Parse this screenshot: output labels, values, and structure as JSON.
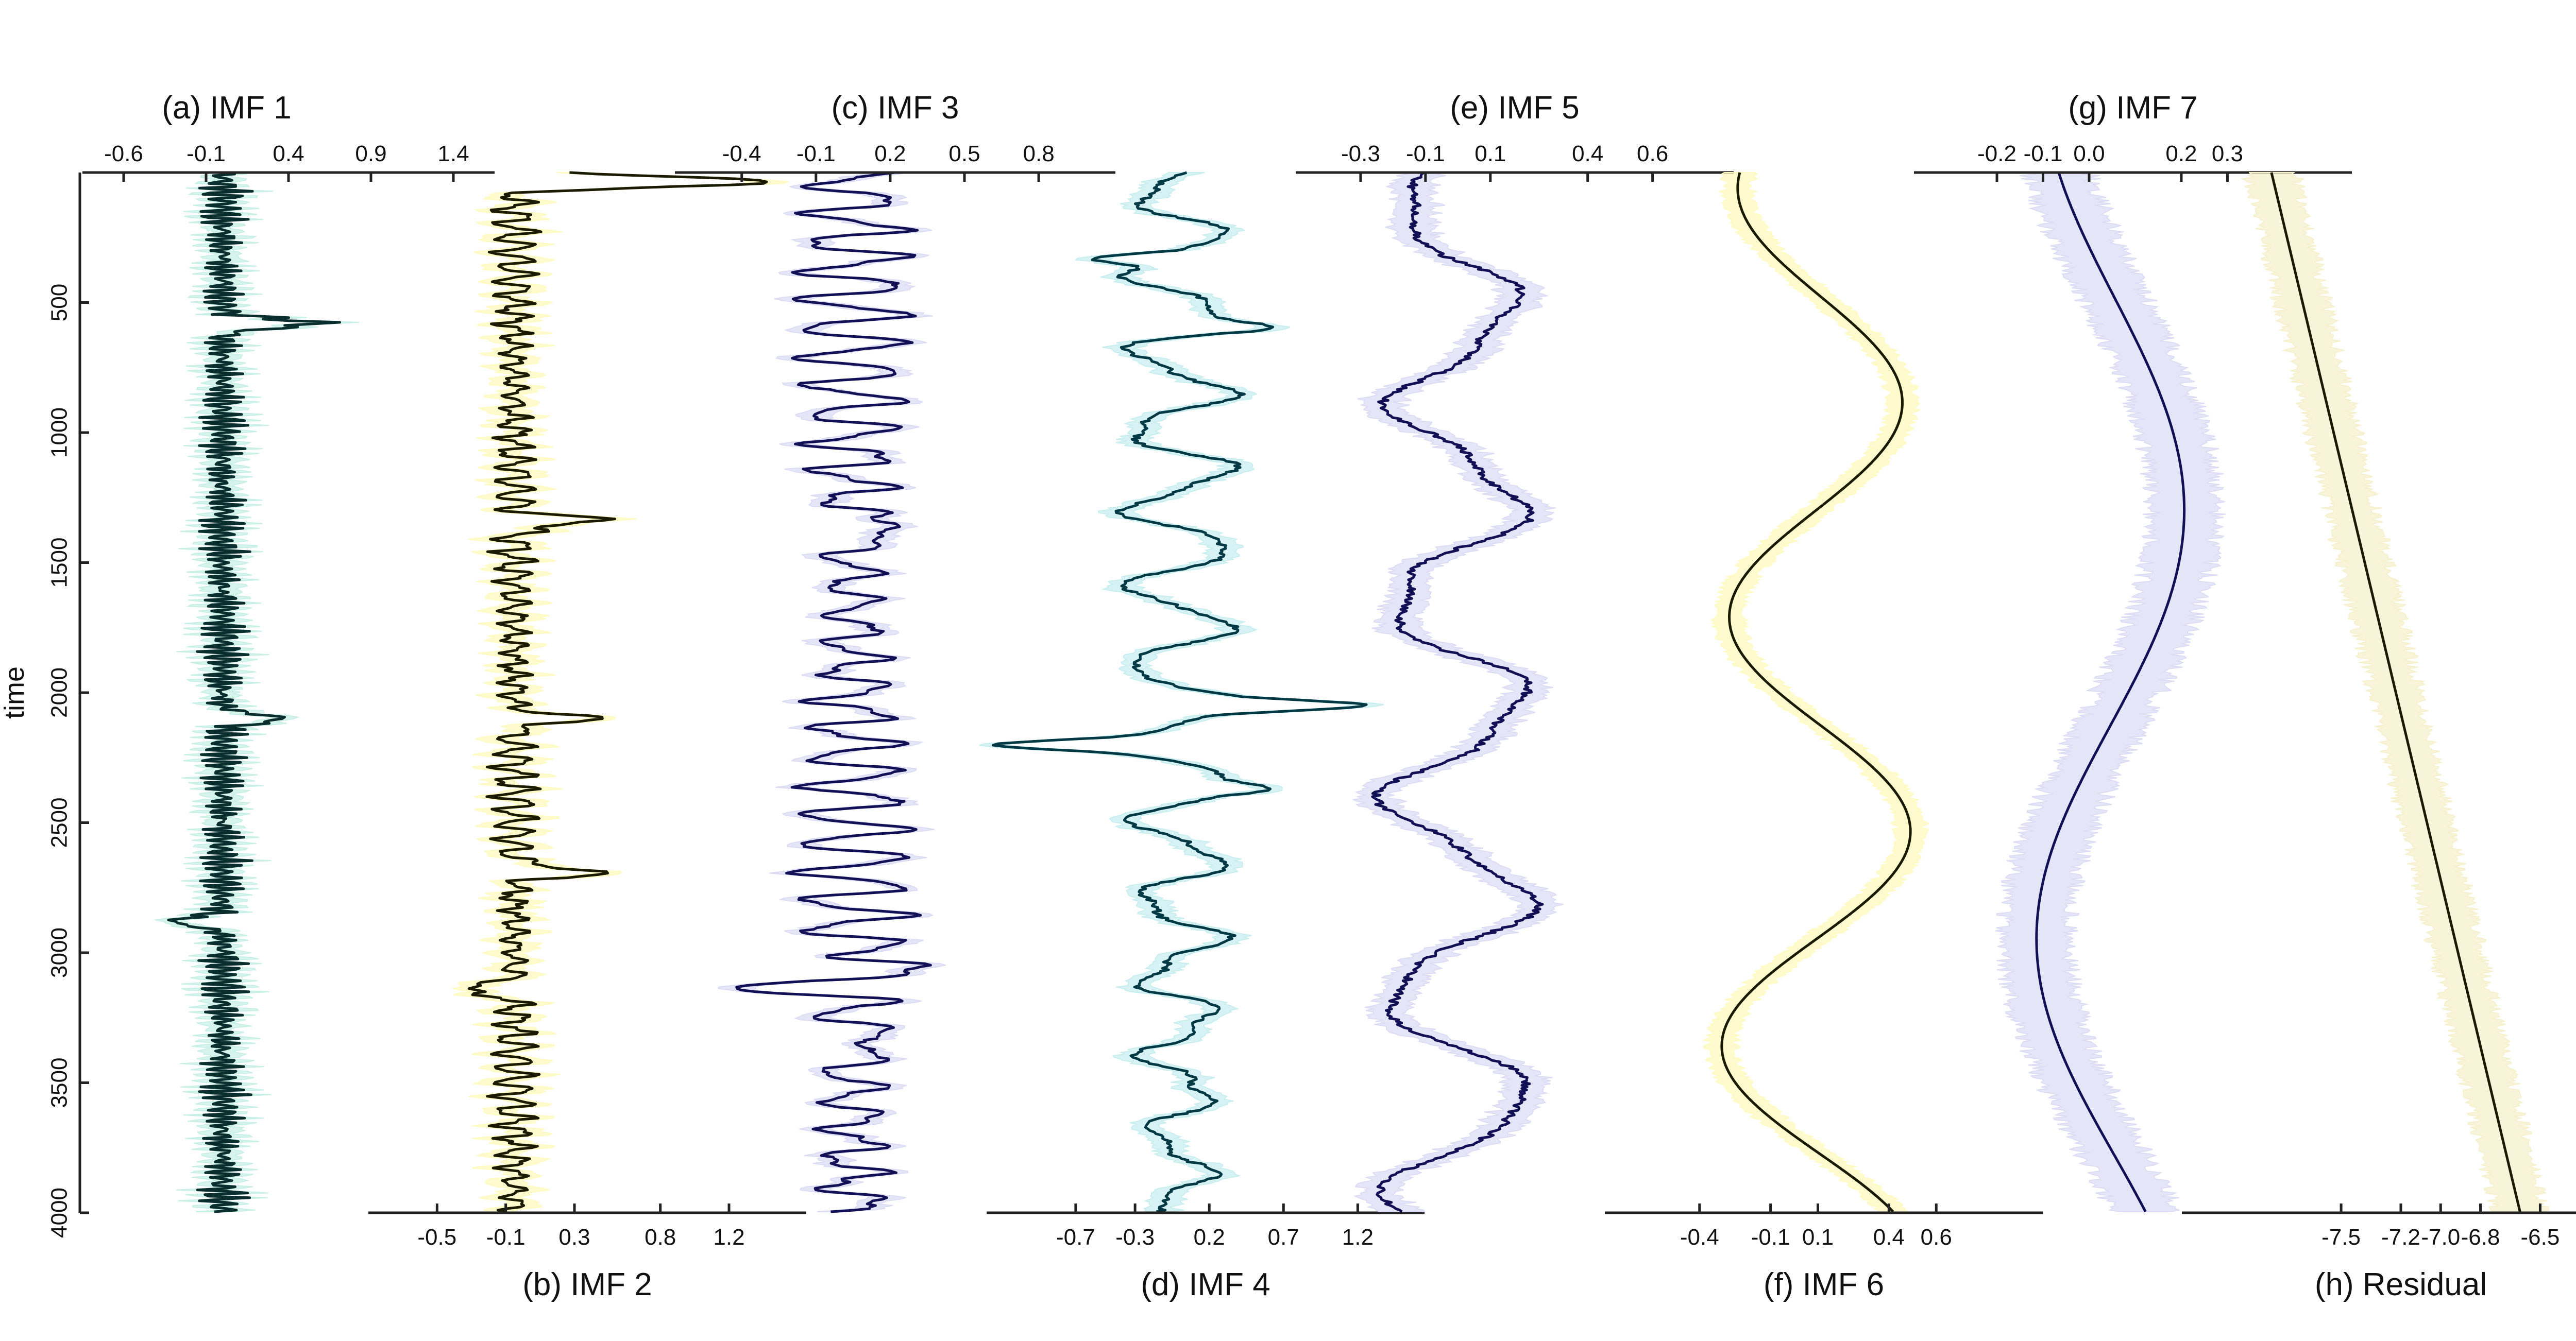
{
  "chart_data": {
    "type": "line",
    "ylabel": "time",
    "yticks": [
      500,
      1000,
      1500,
      2000,
      2500,
      3000,
      3500,
      4000
    ],
    "ylim": [
      0,
      4000
    ],
    "y_inverted": true,
    "confidence_band": true,
    "panels": [
      {
        "title": "(a) IMF 1",
        "axis": "top",
        "ticks": [
          "-0.6",
          "-0.1",
          "0.4",
          "0.9",
          "1.4"
        ],
        "xlim": [
          -0.85,
          1.65
        ],
        "color": "#0a2e2e",
        "band_color": "#c8f0e4",
        "signal": {
          "center": 0.0,
          "amps": [
            0.12,
            0.06
          ],
          "periods": [
            22,
            9
          ],
          "spikes": [
            [
              580,
              0.55
            ],
            [
              2100,
              0.35
            ],
            [
              2880,
              -0.3
            ]
          ],
          "band": 0.1
        }
      },
      {
        "title": "(b) IMF 2",
        "axis": "bottom",
        "ticks": [
          "-0.5",
          "-0.1",
          "0.3",
          "0.8",
          "1.2"
        ],
        "xlim": [
          -0.9,
          1.65
        ],
        "color": "#1a1a00",
        "band_color": "#fffabf",
        "signal": {
          "center": -0.05,
          "amps": [
            0.12,
            0.05
          ],
          "periods": [
            55,
            23
          ],
          "spikes": [
            [
              35,
              1.6
            ],
            [
              1340,
              0.5
            ],
            [
              2100,
              0.45
            ],
            [
              2690,
              0.5
            ],
            [
              3140,
              -0.3
            ]
          ],
          "band": 0.1
        }
      },
      {
        "title": "(c) IMF 3",
        "axis": "top",
        "ticks": [
          "-0.4",
          "-0.1",
          "0.2",
          "0.5",
          "0.8"
        ],
        "xlim": [
          -0.67,
          1.11
        ],
        "color": "#121055",
        "band_color": "#dcdcf5",
        "signal": {
          "center": 0.05,
          "amps": [
            0.22,
            0.06
          ],
          "periods": [
            110,
            47
          ],
          "spikes": [
            [
              1370,
              0.3
            ],
            [
              3040,
              0.3
            ],
            [
              3140,
              -0.35
            ],
            [
              3350,
              0.2
            ]
          ],
          "band": 0.06
        }
      },
      {
        "title": "(d) IMF 4",
        "axis": "bottom",
        "ticks": [
          "-0.7",
          "-0.3",
          "0.2",
          "0.7",
          "1.2"
        ],
        "xlim": [
          -1.3,
          1.65
        ],
        "color": "#003844",
        "band_color": "#c8eef0",
        "signal": {
          "center": 0.0,
          "amps": [
            0.35,
            0.1
          ],
          "periods": [
            300,
            130
          ],
          "spikes": [
            [
              330,
              -0.6
            ],
            [
              600,
              0.4
            ],
            [
              2050,
              0.9
            ],
            [
              2200,
              -0.9
            ],
            [
              2370,
              0.4
            ]
          ],
          "band": 0.1
        }
      },
      {
        "title": "(e) IMF 5",
        "axis": "top",
        "ticks": [
          "-0.3",
          "-0.1",
          "0.1",
          "0.4",
          "0.6"
        ],
        "xlim": [
          -0.5,
          0.85
        ],
        "color": "#121055",
        "band_color": "#dcdcf5",
        "signal": {
          "center": 0.0,
          "amps": [
            0.22,
            0.05
          ],
          "periods": [
            760,
            300
          ],
          "spikes": [],
          "band": 0.06
        }
      },
      {
        "title": "(f) IMF 6",
        "axis": "bottom",
        "ticks": [
          "-0.4",
          "-0.1",
          "0.1",
          "0.4",
          "0.6"
        ],
        "xlim": [
          -0.8,
          1.05
        ],
        "color": "#1a1a00",
        "band_color": "#fffabf",
        "signal": {
          "center": 0.1,
          "amps": [
            0.45
          ],
          "periods": [
            1650
          ],
          "spikes": [],
          "band": 0.06
        }
      },
      {
        "title": "(g) IMF 7",
        "axis": "top",
        "ticks": [
          "-0.2",
          "-0.1",
          "0.0",
          "0.2",
          "0.3"
        ],
        "xlim": [
          -0.38,
          0.57
        ],
        "color": "#121055",
        "band_color": "#dcdcf5",
        "signal": {
          "center": 0.05,
          "amps": [
            0.2
          ],
          "periods": [
            3300
          ],
          "spikes": [],
          "band": 0.07
        }
      },
      {
        "title": "(h) Residual",
        "axis": "bottom",
        "ticks": [
          "-7.5",
          "-7.2",
          "-7.0",
          "-6.8",
          "-6.5"
        ],
        "xlim": [
          -8.3,
          -6.1
        ],
        "color": "#1a1a00",
        "band_color": "#f6f0cc",
        "signal": {
          "center": -7.85,
          "trend": [
            -7.85,
            -6.6
          ],
          "amps": [],
          "periods": [],
          "spikes": [],
          "band": 0.12
        }
      }
    ]
  }
}
